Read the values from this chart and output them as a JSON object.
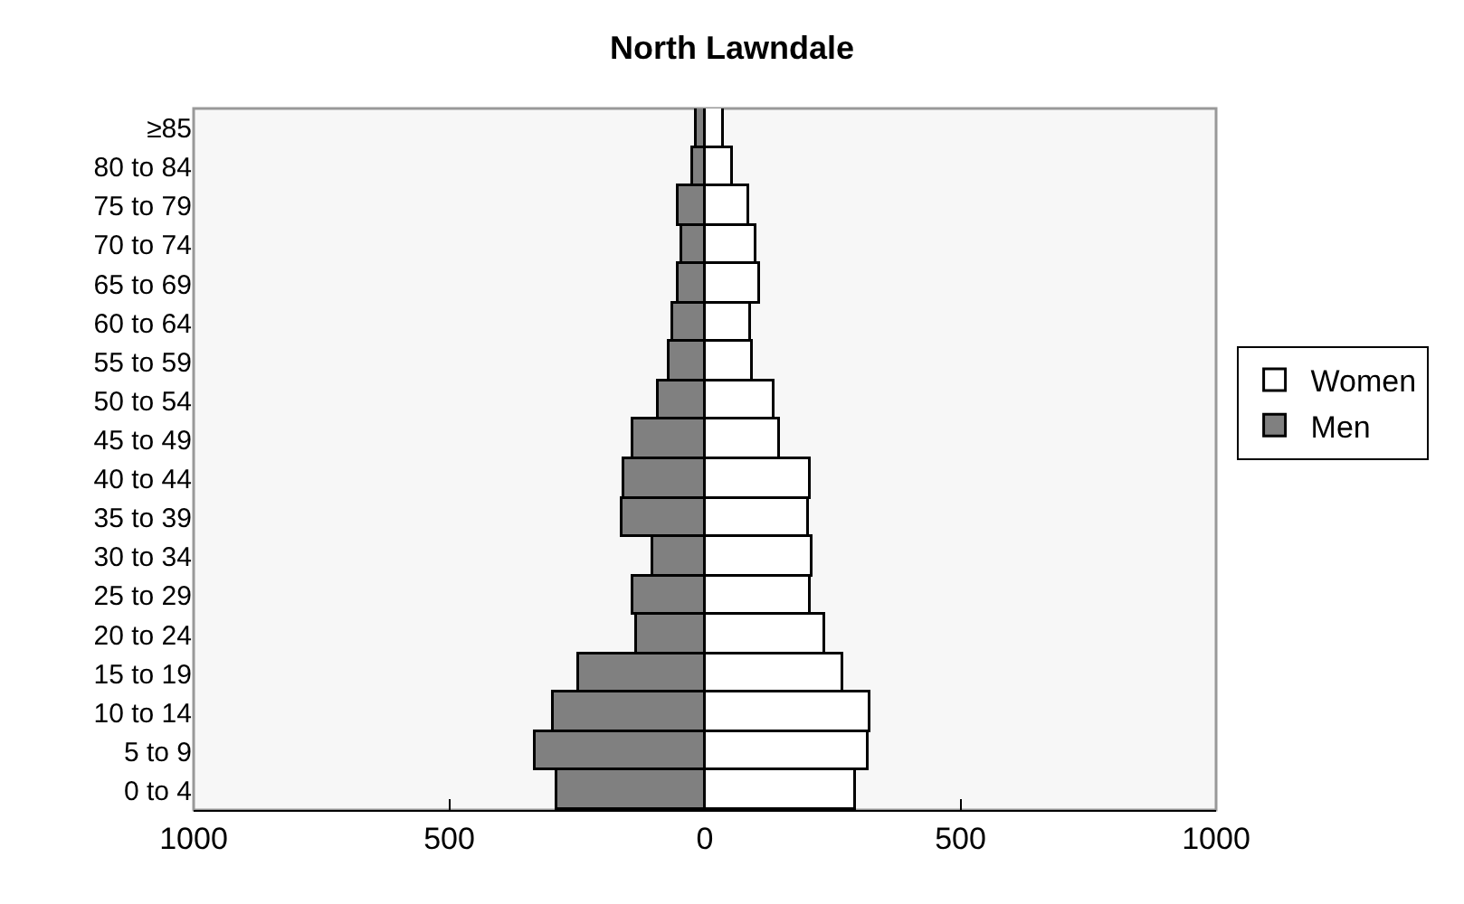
{
  "chart_data": {
    "type": "bar",
    "orientation": "horizontal",
    "stacked": true,
    "title": "North Lawndale",
    "categories": [
      "≥85",
      "80 to 84",
      "75 to 79",
      "70 to 74",
      "65 to 69",
      "60 to 64",
      "55 to 59",
      "50 to 54",
      "45 to 49",
      "40 to 44",
      "35 to 39",
      "30 to 34",
      "25 to 29",
      "20 to 24",
      "15 to 19",
      "10 to 14",
      "5 to 9",
      "0 to 4"
    ],
    "series": [
      {
        "name": "Women",
        "color": "#ffffff",
        "values": [
          36,
          56,
          85,
          101,
          107,
          91,
          95,
          136,
          148,
          207,
          204,
          209,
          206,
          236,
          272,
          324,
          320,
          296
        ]
      },
      {
        "name": "Men",
        "color": "#808080",
        "values": [
          -15,
          -23,
          -50,
          -45,
          -50,
          -62,
          -69,
          -92,
          -140,
          -157,
          -160,
          -100,
          -140,
          -131,
          -246,
          -297,
          -331,
          -288
        ]
      }
    ],
    "xlim": [
      -1000,
      1000
    ],
    "xticks": [
      {
        "value": -1000,
        "label": "1000"
      },
      {
        "value": -500,
        "label": "500"
      },
      0,
      500,
      1000
    ],
    "grid": false,
    "legend": "right"
  }
}
